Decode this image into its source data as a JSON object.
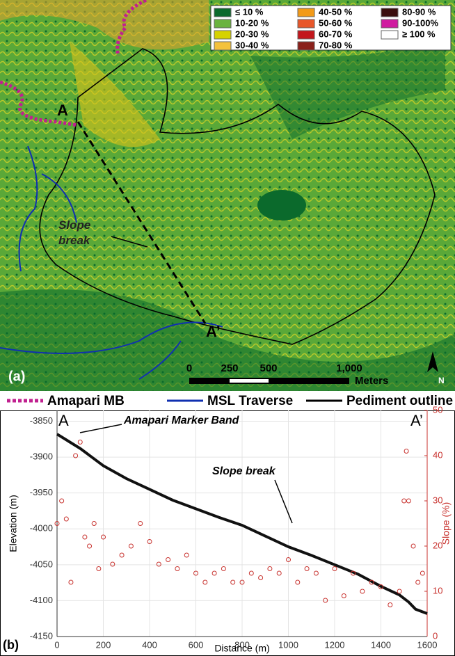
{
  "map": {
    "panel": "(a)",
    "point_a": "A",
    "point_a2": "A’",
    "slope_break": "Slope\nbreak",
    "north": "N",
    "legend": [
      {
        "label": "≤ 10 %",
        "color": "#0b6a2c"
      },
      {
        "label": "10-20 %",
        "color": "#6ab33e"
      },
      {
        "label": "20-30 %",
        "color": "#d6d200"
      },
      {
        "label": "30-40 %",
        "color": "#f4c23c"
      },
      {
        "label": "40-50 %",
        "color": "#f29a18"
      },
      {
        "label": "50-60 %",
        "color": "#e8572a"
      },
      {
        "label": "60-70 %",
        "color": "#c3161c"
      },
      {
        "label": "70-80 %",
        "color": "#8a201a"
      },
      {
        "label": "80-90 %",
        "color": "#3a0e0e"
      },
      {
        "label": "90-100%",
        "color": "#d01ca0"
      },
      {
        "label": "≥ 100 %",
        "color": "#ffffff"
      }
    ],
    "scale_labels": [
      "0",
      "250",
      "500",
      "1,000",
      "Meters"
    ],
    "key": [
      {
        "label": "Amapari MB",
        "color": "#c0208f"
      },
      {
        "label": "MSL Traverse",
        "color": "#1030b0"
      },
      {
        "label": "Pediment outline",
        "color": "#000000"
      }
    ]
  },
  "chart_data": {
    "type": "line",
    "panel": "(b)",
    "x_label": "Distance (m)",
    "y_label": "Elevation (m)",
    "y2_label": "Slope (%)",
    "annotations": [
      "A",
      "A’",
      "Amapari Marker Band",
      "Slope break"
    ],
    "xlim": [
      0,
      1600
    ],
    "xticks": [
      0,
      200,
      400,
      600,
      800,
      1000,
      1200,
      1400,
      1600
    ],
    "ylim": [
      -4150,
      -3835
    ],
    "yticks": [
      -3850,
      -3900,
      -3950,
      -4000,
      -4050,
      -4100,
      -4150
    ],
    "y2lim": [
      0,
      50
    ],
    "y2ticks": [
      0,
      10,
      20,
      30,
      40,
      50
    ],
    "grid": true,
    "series": [
      {
        "type": "line",
        "color": "#111111",
        "x": [
          0,
          50,
          100,
          200,
          300,
          400,
          500,
          600,
          700,
          800,
          900,
          1000,
          1100,
          1200,
          1300,
          1400,
          1480,
          1520,
          1550,
          1600
        ],
        "values": [
          -3868,
          -3878,
          -3888,
          -3912,
          -3930,
          -3945,
          -3960,
          -3972,
          -3984,
          -3995,
          -4010,
          -4025,
          -4037,
          -4050,
          -4063,
          -4080,
          -4092,
          -4102,
          -4112,
          -4118
        ]
      },
      {
        "type": "scatter",
        "color": "#c8322e",
        "axis": "y2",
        "x": [
          0,
          20,
          40,
          60,
          80,
          100,
          120,
          140,
          160,
          180,
          200,
          240,
          280,
          320,
          360,
          400,
          440,
          480,
          520,
          560,
          600,
          640,
          680,
          720,
          760,
          800,
          840,
          880,
          920,
          960,
          1000,
          1040,
          1080,
          1120,
          1160,
          1200,
          1240,
          1280,
          1320,
          1360,
          1400,
          1440,
          1480,
          1500,
          1510,
          1520,
          1540,
          1560,
          1580
        ],
        "values": [
          25,
          30,
          26,
          12,
          40,
          43,
          22,
          20,
          25,
          15,
          22,
          16,
          18,
          20,
          25,
          21,
          16,
          17,
          15,
          18,
          14,
          12,
          14,
          15,
          12,
          12,
          14,
          13,
          15,
          14,
          17,
          12,
          15,
          14,
          8,
          15,
          9,
          14,
          10,
          12,
          11,
          7,
          10,
          30,
          41,
          30,
          20,
          12,
          14
        ]
      }
    ]
  }
}
